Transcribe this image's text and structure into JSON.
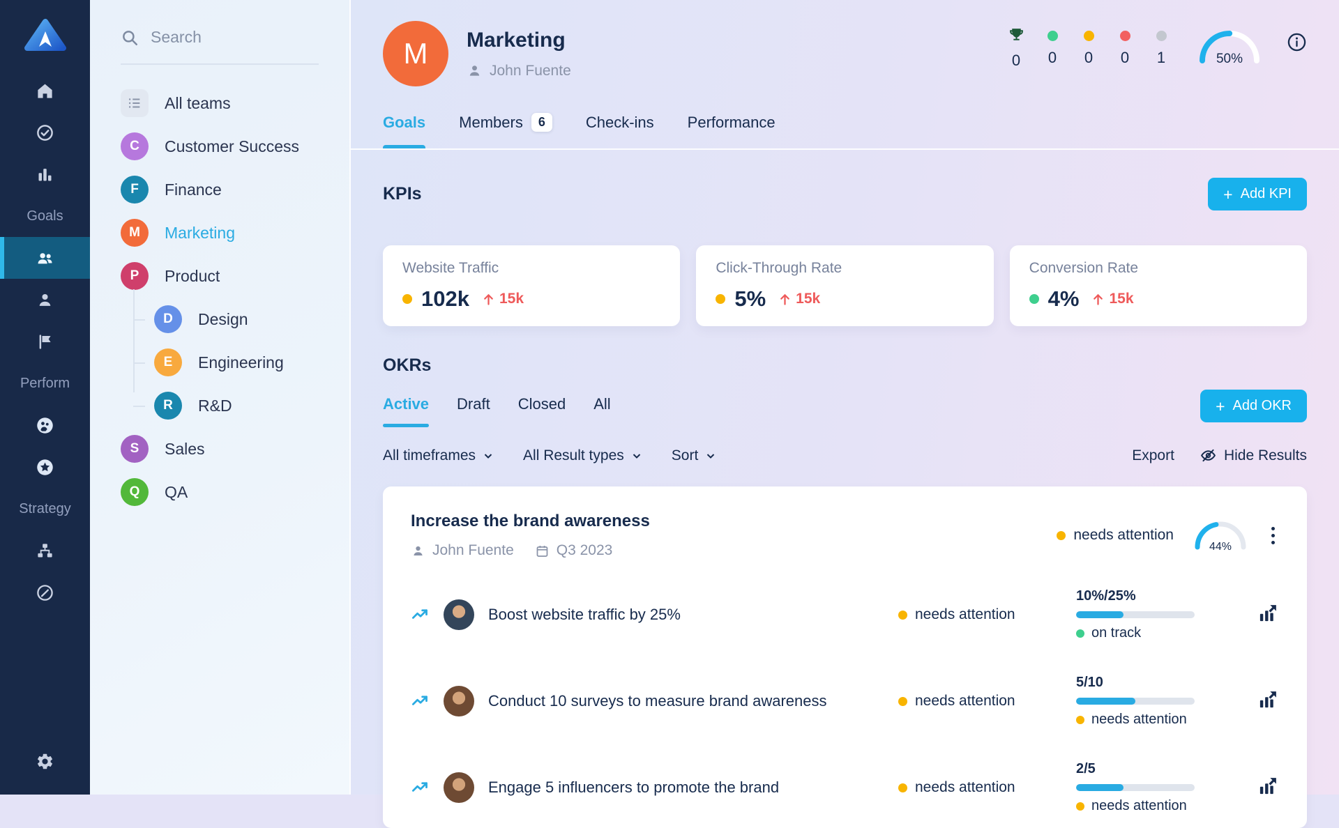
{
  "colors": {
    "accent_cyan": "#18b1ec",
    "link_cyan": "#2aabe2",
    "navy_text": "#172b4d",
    "gray_text": "#8a93a8",
    "nav_bg": "#182948",
    "nav_active_bg": "#135c80",
    "status_green": "#3ecf8e",
    "status_amber": "#f8b400",
    "status_red": "#f26060",
    "status_gray": "#c3c7cf",
    "delta_red": "#ee5a5a"
  },
  "nav": {
    "labels": {
      "goals": "Goals",
      "perform": "Perform",
      "strategy": "Strategy"
    }
  },
  "sidebar": {
    "search_placeholder": "Search",
    "items": [
      {
        "label": "All teams"
      },
      {
        "label": "Customer Success",
        "initial": "C",
        "color": "#b678dd"
      },
      {
        "label": "Finance",
        "initial": "F",
        "color": "#1a87ae"
      },
      {
        "label": "Marketing",
        "initial": "M",
        "color": "#f26b3a"
      },
      {
        "label": "Product",
        "initial": "P",
        "color": "#cf3f6b"
      },
      {
        "label": "Design",
        "initial": "D",
        "color": "#6590e8"
      },
      {
        "label": "Engineering",
        "initial": "E",
        "color": "#f8a93e"
      },
      {
        "label": "R&D",
        "initial": "R",
        "color": "#1a87ae"
      },
      {
        "label": "Sales",
        "initial": "S",
        "color": "#a262c2"
      },
      {
        "label": "QA",
        "initial": "Q",
        "color": "#52b83a"
      }
    ]
  },
  "header": {
    "team": {
      "initial": "M",
      "name": "Marketing",
      "owner": "John Fuente"
    },
    "tabs": [
      {
        "label": "Goals"
      },
      {
        "label": "Members",
        "badge": "6"
      },
      {
        "label": "Check-ins"
      },
      {
        "label": "Performance"
      }
    ],
    "stats": {
      "trophy": "0",
      "green": "0",
      "amber": "0",
      "red": "0",
      "gray": "1",
      "progress_pct": 50,
      "progress_label": "50%"
    }
  },
  "kpis": {
    "title": "KPIs",
    "add_label": "Add KPI",
    "cards": [
      {
        "name": "Website Traffic",
        "status_color": "amber",
        "value": "102k",
        "delta": "15k"
      },
      {
        "name": "Click-Through Rate",
        "status_color": "amber",
        "value": "5%",
        "delta": "15k"
      },
      {
        "name": "Conversion Rate",
        "status_color": "green",
        "value": "4%",
        "delta": "15k"
      }
    ]
  },
  "okrs": {
    "title": "OKRs",
    "tabs": [
      {
        "label": "Active"
      },
      {
        "label": "Draft"
      },
      {
        "label": "Closed"
      },
      {
        "label": "All"
      }
    ],
    "add_label": "Add OKR",
    "filters": [
      {
        "label": "All timeframes"
      },
      {
        "label": "All Result types"
      },
      {
        "label": "Sort"
      }
    ],
    "export_label": "Export",
    "hide_label": "Hide Results",
    "objective": {
      "title": "Increase the brand awareness",
      "owner": "John Fuente",
      "timeframe": "Q3 2023",
      "status": "needs attention",
      "status_color": "amber",
      "progress_pct": 44,
      "progress_label": "44%",
      "key_results": [
        {
          "title": "Boost website traffic by 25%",
          "status": "needs attention",
          "status_color": "amber",
          "progress_label": "10%/25%",
          "fill_pct": 40,
          "sub_status": "on track",
          "sub_status_color": "green"
        },
        {
          "title": "Conduct 10 surveys to measure brand awareness",
          "status": "needs attention",
          "status_color": "amber",
          "progress_label": "5/10",
          "fill_pct": 50,
          "sub_status": "needs attention",
          "sub_status_color": "amber"
        },
        {
          "title": "Engage 5 influencers to promote the brand",
          "status": "needs attention",
          "status_color": "amber",
          "progress_label": "2/5",
          "fill_pct": 40,
          "sub_status": "needs attention",
          "sub_status_color": "amber"
        }
      ]
    }
  }
}
